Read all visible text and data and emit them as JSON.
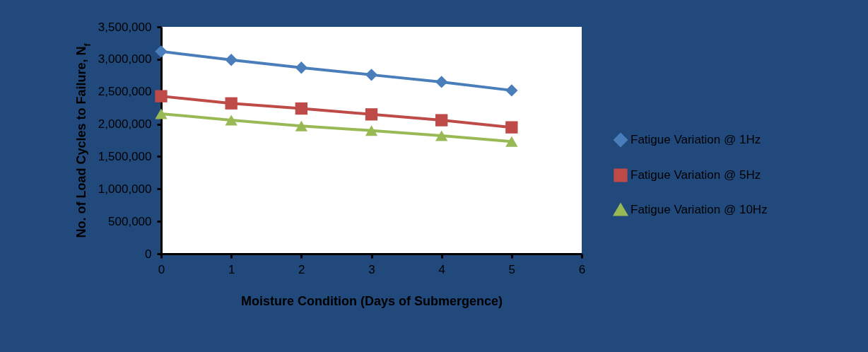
{
  "chart_data": {
    "type": "line",
    "xlabel": "Moisture Condition (Days of Submergence)",
    "ylabel": "No. of Load Cycles to Failure, N$_{f}$",
    "x": [
      0,
      1,
      2,
      3,
      4,
      5
    ],
    "series": [
      {
        "name": "Fatigue Variation @ 1Hz",
        "color": "#4a7ebb",
        "marker": "diamond",
        "values": [
          3120000,
          2990000,
          2870000,
          2760000,
          2650000,
          2520000
        ]
      },
      {
        "name": "Fatigue Variation @ 5Hz",
        "color": "#be4b48",
        "marker": "square",
        "values": [
          2430000,
          2320000,
          2240000,
          2150000,
          2060000,
          1950000
        ]
      },
      {
        "name": "Fatigue Variation @ 10Hz",
        "color": "#98b954",
        "marker": "triangle",
        "values": [
          2160000,
          2060000,
          1970000,
          1900000,
          1820000,
          1730000
        ]
      }
    ],
    "xlim": [
      0,
      6
    ],
    "xticks": [
      0,
      1,
      2,
      3,
      4,
      5,
      6
    ],
    "ylim": [
      0,
      3500000
    ],
    "yticks": [
      0,
      {
        "value": 500000,
        "label": "500,000"
      },
      {
        "value": 1000000,
        "label": "1,000,000"
      },
      {
        "value": 1500000,
        "label": "1,500,000"
      },
      {
        "value": 2000000,
        "label": "2,000,000"
      },
      {
        "value": 2500000,
        "label": "2,500,000"
      },
      {
        "value": 3000000,
        "label": "3,000,000"
      },
      {
        "value": 3500000,
        "label": "3,500,000"
      }
    ],
    "grid": false,
    "legend": "right",
    "line_style": "solid"
  }
}
